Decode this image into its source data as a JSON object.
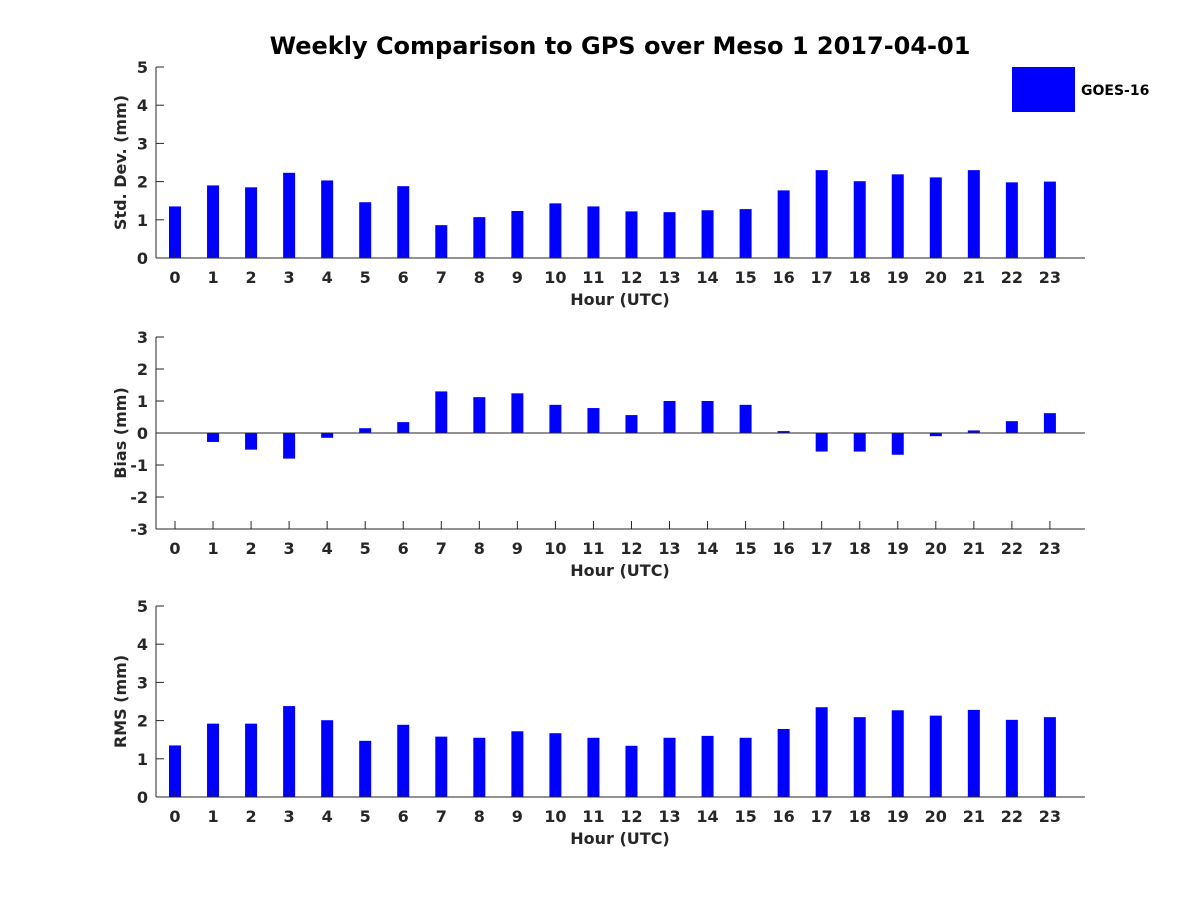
{
  "title": "Weekly Comparison to GPS over Meso 1 2017-04-01",
  "legend": {
    "label": "GOES-16",
    "color": "#0000ff",
    "placement": "top-right"
  },
  "chart_data": [
    {
      "type": "bar",
      "series_name": "GOES-16",
      "xlabel": "Hour (UTC)",
      "ylabel": "Std. Dev. (mm)",
      "ylim": [
        0,
        5
      ],
      "yticks": [
        0,
        1,
        2,
        3,
        4,
        5
      ],
      "categories": [
        "0",
        "1",
        "2",
        "3",
        "4",
        "5",
        "6",
        "7",
        "8",
        "9",
        "10",
        "11",
        "12",
        "13",
        "14",
        "15",
        "16",
        "17",
        "18",
        "19",
        "20",
        "21",
        "22",
        "23"
      ],
      "values": [
        1.35,
        1.9,
        1.85,
        2.23,
        2.03,
        1.46,
        1.88,
        0.86,
        1.07,
        1.23,
        1.43,
        1.35,
        1.22,
        1.2,
        1.25,
        1.28,
        1.77,
        2.3,
        2.01,
        2.19,
        2.11,
        2.3,
        1.98,
        2.0
      ]
    },
    {
      "type": "bar",
      "series_name": "GOES-16",
      "xlabel": "Hour (UTC)",
      "ylabel": "Bias (mm)",
      "ylim": [
        -3,
        3
      ],
      "yticks": [
        -3,
        -2,
        -1,
        0,
        1,
        2,
        3
      ],
      "categories": [
        "0",
        "1",
        "2",
        "3",
        "4",
        "5",
        "6",
        "7",
        "8",
        "9",
        "10",
        "11",
        "12",
        "13",
        "14",
        "15",
        "16",
        "17",
        "18",
        "19",
        "20",
        "21",
        "22",
        "23"
      ],
      "values": [
        0.0,
        -0.28,
        -0.52,
        -0.8,
        -0.15,
        0.15,
        0.34,
        1.3,
        1.12,
        1.24,
        0.88,
        0.78,
        0.56,
        1.0,
        1.0,
        0.88,
        0.06,
        -0.58,
        -0.58,
        -0.68,
        -0.1,
        0.08,
        0.37,
        0.62
      ]
    },
    {
      "type": "bar",
      "series_name": "GOES-16",
      "xlabel": "Hour (UTC)",
      "ylabel": "RMS (mm)",
      "ylim": [
        0,
        5
      ],
      "yticks": [
        0,
        1,
        2,
        3,
        4,
        5
      ],
      "categories": [
        "0",
        "1",
        "2",
        "3",
        "4",
        "5",
        "6",
        "7",
        "8",
        "9",
        "10",
        "11",
        "12",
        "13",
        "14",
        "15",
        "16",
        "17",
        "18",
        "19",
        "20",
        "21",
        "22",
        "23"
      ],
      "values": [
        1.35,
        1.92,
        1.92,
        2.38,
        2.01,
        1.47,
        1.89,
        1.58,
        1.55,
        1.72,
        1.67,
        1.55,
        1.34,
        1.55,
        1.6,
        1.55,
        1.78,
        2.35,
        2.09,
        2.27,
        2.13,
        2.28,
        2.02,
        2.09
      ]
    }
  ]
}
